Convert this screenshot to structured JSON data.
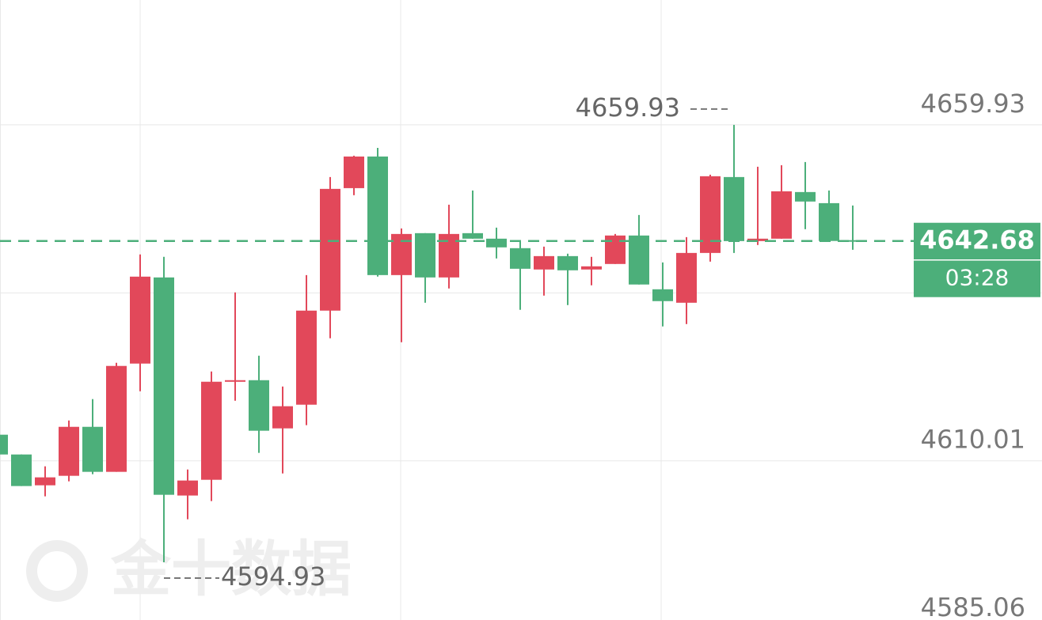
{
  "chart_data": {
    "type": "candlestick",
    "categories": [
      null,
      null,
      null,
      null,
      null,
      null,
      null,
      null,
      null,
      null,
      null,
      null,
      null,
      null,
      null,
      null,
      null,
      null,
      null,
      null,
      null,
      null,
      null,
      null,
      null,
      null,
      null,
      null,
      null,
      null,
      null,
      null,
      null,
      null,
      null,
      null,
      null
    ],
    "open": [
      4613.89,
      4610.95,
      4606.37,
      4607.78,
      4615.06,
      4608.37,
      4624.46,
      4637.26,
      4604.85,
      4607.19,
      4621.88,
      4621.99,
      4614.83,
      4618.35,
      4632.33,
      4650.53,
      4655.23,
      4637.61,
      4643.84,
      4637.26,
      4643.84,
      4643.02,
      4641.61,
      4638.44,
      4640.43,
      4638.44,
      4639.26,
      4643.49,
      4635.5,
      4633.5,
      4640.9,
      4652.18,
      4642.66,
      4643.02,
      4649.95,
      4648.3,
      4642.8
    ],
    "high": [
      4613.89,
      4610.95,
      4609.19,
      4616.0,
      4619.18,
      4624.58,
      4640.67,
      4640.32,
      4608.72,
      4623.29,
      4635.03,
      4625.63,
      4621.05,
      4637.61,
      4652.18,
      4655.35,
      4656.52,
      4644.54,
      4643.84,
      4648.07,
      4650.18,
      4644.66,
      4642.55,
      4641.84,
      4640.79,
      4640.32,
      4643.72,
      4646.54,
      4639.49,
      4643.25,
      4652.53,
      4659.93,
      4653.71,
      4653.94,
      4654.41,
      4650.18,
      4647.95
    ],
    "low": [
      4610.95,
      4606.26,
      4604.73,
      4606.96,
      4608.02,
      4608.37,
      4620.35,
      4594.93,
      4601.32,
      4604.02,
      4618.94,
      4611.19,
      4608.13,
      4615.3,
      4628.22,
      4649.48,
      4637.38,
      4627.63,
      4633.5,
      4635.62,
      4643.02,
      4640.08,
      4632.45,
      4634.56,
      4633.15,
      4636.09,
      4639.26,
      4636.21,
      4629.98,
      4630.33,
      4639.61,
      4640.9,
      4642.08,
      4643.02,
      4644.43,
      4642.55,
      4641.37
    ],
    "close": [
      4610.95,
      4606.26,
      4607.55,
      4615.06,
      4608.37,
      4624.11,
      4637.38,
      4604.96,
      4607.08,
      4621.76,
      4621.99,
      4614.48,
      4618.12,
      4632.33,
      4650.42,
      4655.23,
      4637.61,
      4643.72,
      4637.26,
      4643.72,
      4643.02,
      4641.73,
      4638.55,
      4640.43,
      4638.32,
      4638.91,
      4643.49,
      4636.21,
      4633.74,
      4640.9,
      4652.3,
      4642.66,
      4643.02,
      4650.06,
      4648.54,
      4642.68,
      4642.68
    ],
    "up_color": "#e2485a",
    "down_color": "#4caf7a",
    "ylim": [
      4585.06,
      4678.49
    ],
    "yticks": [
      4659.93,
      4634.97,
      4610.01,
      4585.06
    ],
    "grid": true,
    "high_marker": 4659.93,
    "low_marker": 4594.93,
    "last_price": 4642.68,
    "countdown": "03:28",
    "watermark": "金十数据"
  }
}
